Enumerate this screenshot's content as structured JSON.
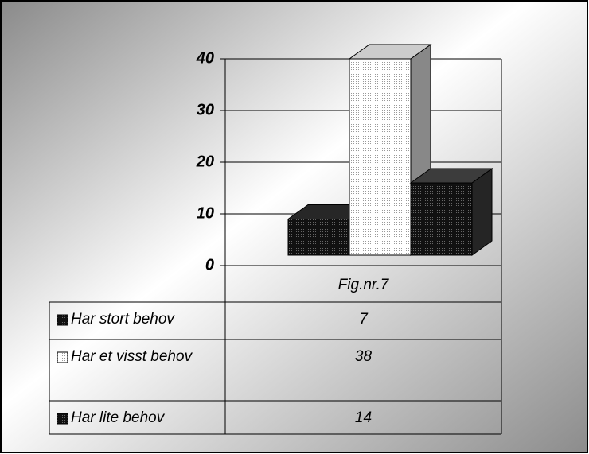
{
  "chart_data": {
    "type": "bar3d",
    "categories": [
      "Fig.nr.7"
    ],
    "series": [
      {
        "name": "Har stort behov",
        "color": "#1e1e1e",
        "values": [
          7
        ]
      },
      {
        "name": "Har et visst behov",
        "color": "#ffffff",
        "values": [
          38
        ]
      },
      {
        "name": "Har lite behov",
        "color": "#2e2e2e",
        "values": [
          14
        ]
      }
    ],
    "ylim": [
      0,
      40
    ],
    "yticks": [
      0,
      10,
      20,
      30,
      40
    ],
    "grid": true,
    "data_table": true
  }
}
